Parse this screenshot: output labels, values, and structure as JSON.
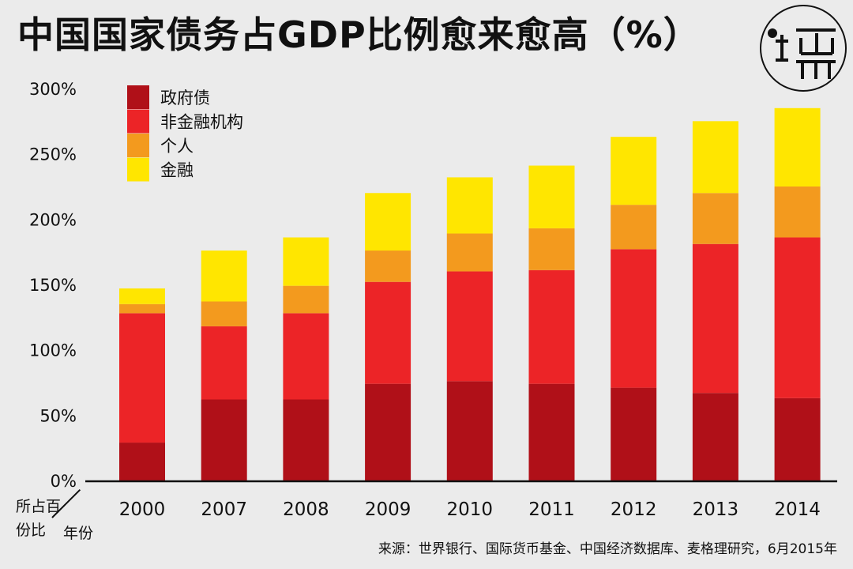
{
  "header": {
    "title": "中国国家债务占GDP比例愈来愈高（%）"
  },
  "corner_label": {
    "top": "所占百",
    "bottom": "份比",
    "right": "年份"
  },
  "source": "来源：世界银行、国际货币基金、中国经济数据库、麦格理研究，6月2015年",
  "logo": {
    "name": "logo-mark"
  },
  "colors": {
    "government": "#b01018",
    "nonfinancial": "#ec2427",
    "personal": "#f39a1e",
    "financial": "#ffe600"
  },
  "chart_data": {
    "type": "bar",
    "stacked": true,
    "title": "中国国家债务占GDP比例愈来愈高（%）",
    "xlabel": "年份",
    "ylabel": "所占百份比",
    "ylim": [
      0,
      300
    ],
    "yticks": [
      "0%",
      "50%",
      "100%",
      "150%",
      "200%",
      "250%",
      "300%"
    ],
    "ytick_values": [
      0,
      50,
      100,
      150,
      200,
      250,
      300
    ],
    "categories": [
      "2000",
      "2007",
      "2008",
      "2009",
      "2010",
      "2011",
      "2012",
      "2013",
      "2014"
    ],
    "series": [
      {
        "name": "政府债",
        "key": "government",
        "values": [
          29,
          62,
          62,
          74,
          76,
          74,
          71,
          67,
          63
        ]
      },
      {
        "name": "非金融机构",
        "key": "nonfinancial",
        "values": [
          99,
          56,
          66,
          78,
          84,
          87,
          106,
          114,
          123
        ]
      },
      {
        "name": "个人",
        "key": "personal",
        "values": [
          7,
          19,
          21,
          24,
          29,
          32,
          34,
          39,
          39
        ]
      },
      {
        "name": "金融",
        "key": "financial",
        "values": [
          12,
          39,
          37,
          44,
          43,
          48,
          52,
          55,
          60
        ]
      }
    ],
    "legend_position": "top-left"
  }
}
